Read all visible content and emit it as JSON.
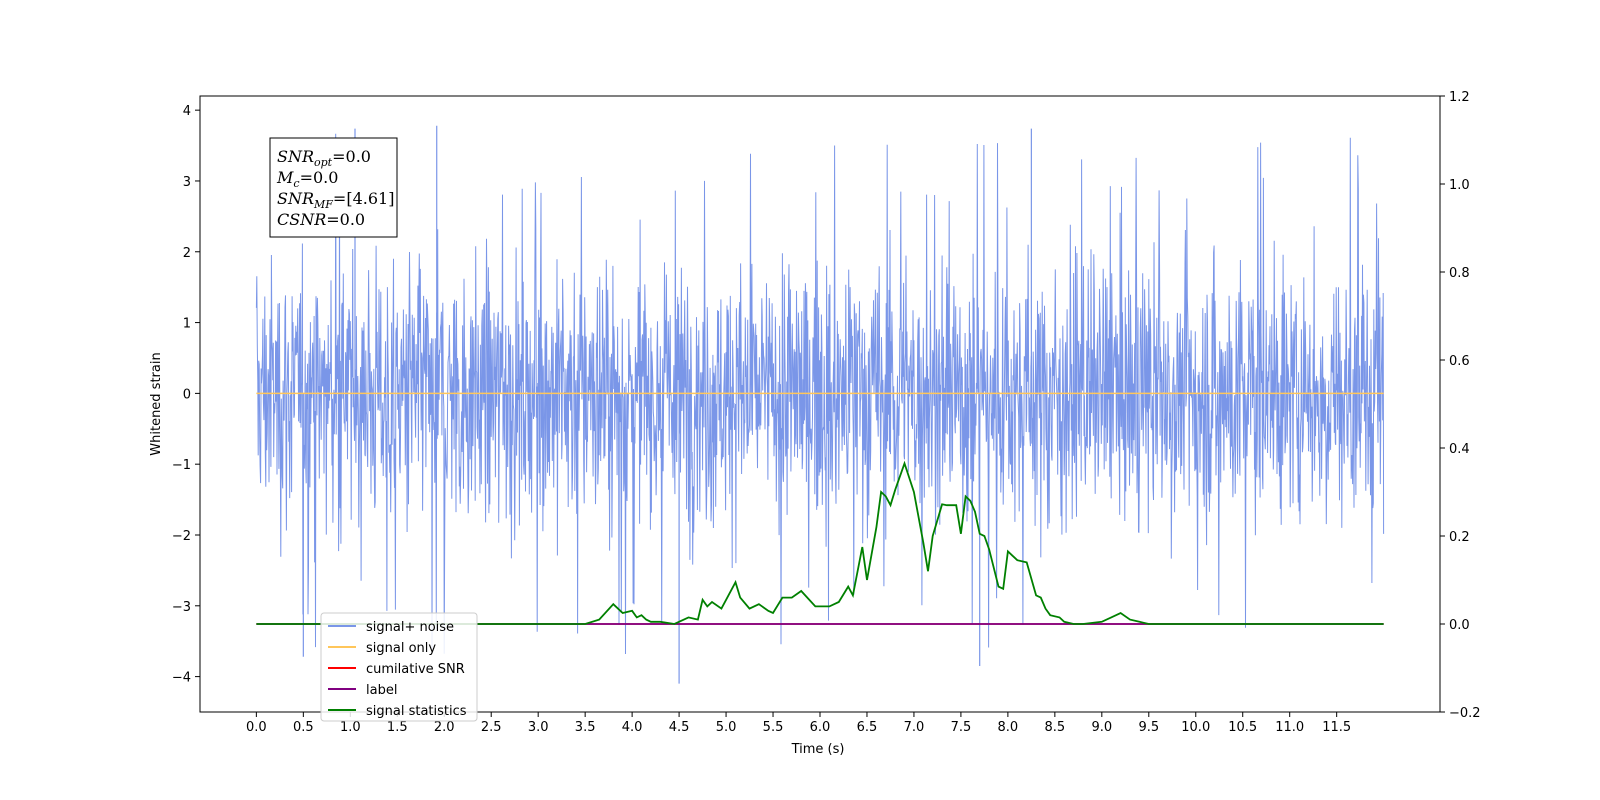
{
  "chart_data": {
    "type": "line",
    "xlabel": "Time (s)",
    "ylabel": "Whitened strain",
    "xlim": [
      -0.6,
      12.6
    ],
    "ylim": [
      -4.5,
      4.2
    ],
    "y2lim": [
      -0.2,
      1.2
    ],
    "x_ticks": [
      "0.0",
      "0.5",
      "1.0",
      "1.5",
      "2.0",
      "2.5",
      "3.0",
      "3.5",
      "4.0",
      "4.5",
      "5.0",
      "5.5",
      "6.0",
      "6.5",
      "7.0",
      "7.5",
      "8.0",
      "8.5",
      "9.0",
      "9.5",
      "10.0",
      "10.5",
      "11.0",
      "11.5"
    ],
    "y_ticks": [
      "4",
      "3",
      "2",
      "1",
      "0",
      "−1",
      "−2",
      "−3",
      "−4"
    ],
    "y2_ticks": [
      "1.2",
      "1.0",
      "0.8",
      "0.6",
      "0.4",
      "0.2",
      "0.0",
      "−0.2"
    ],
    "annotation": [
      {
        "sym": "SNR",
        "sub": "opt",
        "val": "=0.0"
      },
      {
        "sym": "M",
        "sub": "c",
        "val": "=0.0"
      },
      {
        "sym": "SNR",
        "sub": "MF",
        "val": "=[4.61]"
      },
      {
        "sym": "CSNR",
        "sub": "",
        "val": "=0.0"
      }
    ],
    "legend_position": "lower-left",
    "series": [
      {
        "name": "signal+ noise",
        "color": "#7a96e8",
        "axis": "left",
        "x_range": [
          0.0,
          12.0
        ],
        "envelope_typical": [
          -2.0,
          2.5
        ],
        "max": 3.78,
        "min": -4.1
      },
      {
        "name": "signal only",
        "color": "#ffc65a",
        "axis": "left",
        "x_range": [
          0.0,
          12.0
        ],
        "value": 0.0
      },
      {
        "name": "cumilative SNR",
        "color": "#ff0000",
        "axis": "right",
        "x_range": [
          0.0,
          12.0
        ],
        "value": 0.0
      },
      {
        "name": "label",
        "color": "#800080",
        "axis": "right",
        "x_range": [
          0.0,
          12.0
        ],
        "value": 0.0
      },
      {
        "name": "signal statistics",
        "color": "#008000",
        "axis": "right",
        "x": [
          0.0,
          3.5,
          3.65,
          3.8,
          3.9,
          4.0,
          4.05,
          4.1,
          4.15,
          4.2,
          4.3,
          4.45,
          4.6,
          4.7,
          4.75,
          4.8,
          4.85,
          4.95,
          5.0,
          5.1,
          5.15,
          5.25,
          5.35,
          5.45,
          5.5,
          5.6,
          5.7,
          5.8,
          5.95,
          6.1,
          6.2,
          6.3,
          6.35,
          6.45,
          6.5,
          6.6,
          6.65,
          6.7,
          6.75,
          6.8,
          6.9,
          7.0,
          7.1,
          7.15,
          7.2,
          7.3,
          7.35,
          7.45,
          7.5,
          7.55,
          7.6,
          7.65,
          7.7,
          7.75,
          7.8,
          7.9,
          7.95,
          8.0,
          8.05,
          8.1,
          8.2,
          8.3,
          8.35,
          8.4,
          8.45,
          8.55,
          8.6,
          8.7,
          8.8,
          9.0,
          9.1,
          9.2,
          9.3,
          9.4,
          9.5,
          12.0
        ],
        "y": [
          0.0,
          0.0,
          0.01,
          0.045,
          0.025,
          0.03,
          0.015,
          0.02,
          0.01,
          0.005,
          0.005,
          0.0,
          0.015,
          0.01,
          0.055,
          0.04,
          0.05,
          0.035,
          0.055,
          0.095,
          0.06,
          0.035,
          0.045,
          0.03,
          0.025,
          0.06,
          0.06,
          0.075,
          0.04,
          0.04,
          0.05,
          0.085,
          0.065,
          0.175,
          0.1,
          0.22,
          0.3,
          0.29,
          0.27,
          0.305,
          0.365,
          0.3,
          0.185,
          0.12,
          0.2,
          0.272,
          0.27,
          0.27,
          0.205,
          0.29,
          0.28,
          0.255,
          0.205,
          0.2,
          0.17,
          0.085,
          0.08,
          0.165,
          0.155,
          0.145,
          0.14,
          0.065,
          0.06,
          0.035,
          0.02,
          0.015,
          0.005,
          0.0,
          0.0,
          0.005,
          0.015,
          0.025,
          0.01,
          0.005,
          0.0,
          0.0
        ]
      }
    ]
  }
}
